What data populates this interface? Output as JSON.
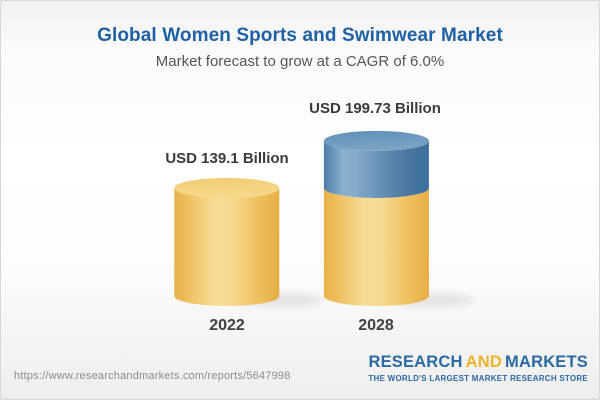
{
  "page": {
    "title": "Global Women Sports and Swimwear Market",
    "subtitle": "Market forecast to grow at a CAGR of 6.0%",
    "title_color": "#1e61a4"
  },
  "chart_data": {
    "type": "bar",
    "style": "3d-cylinder",
    "title": "Global Women Sports and Swimwear Market",
    "subtitle": "Market forecast to grow at a CAGR of 6.0%",
    "unit": "USD Billion",
    "cagr_percent": 6.0,
    "categories": [
      "2022",
      "2028"
    ],
    "values": [
      139.1,
      199.73
    ],
    "value_labels": [
      "USD 139.1 Billion",
      "USD 199.73 Billion"
    ],
    "bars": [
      {
        "category": "2022",
        "total": 139.1,
        "label": "USD 139.1 Billion",
        "segments": [
          {
            "color": "yellow",
            "value": 139.1
          }
        ]
      },
      {
        "category": "2028",
        "total": 199.73,
        "label": "USD 199.73 Billion",
        "segments": [
          {
            "color": "yellow",
            "value": 139.1
          },
          {
            "color": "blue",
            "value": 60.63
          }
        ]
      }
    ],
    "colors": {
      "yellow": "#f2c96f",
      "blue": "#5a89b1"
    },
    "legend": false,
    "axes": false
  },
  "footer": {
    "url": "https://www.researchandmarkets.com/reports/5647998",
    "logo": {
      "word_research": "RESEARCH",
      "word_and": "AND",
      "word_markets": "MARKETS",
      "tagline": "THE WORLD'S LARGEST MARKET RESEARCH STORE",
      "blue": "#2c6aa4",
      "gold": "#f0b32c"
    }
  }
}
